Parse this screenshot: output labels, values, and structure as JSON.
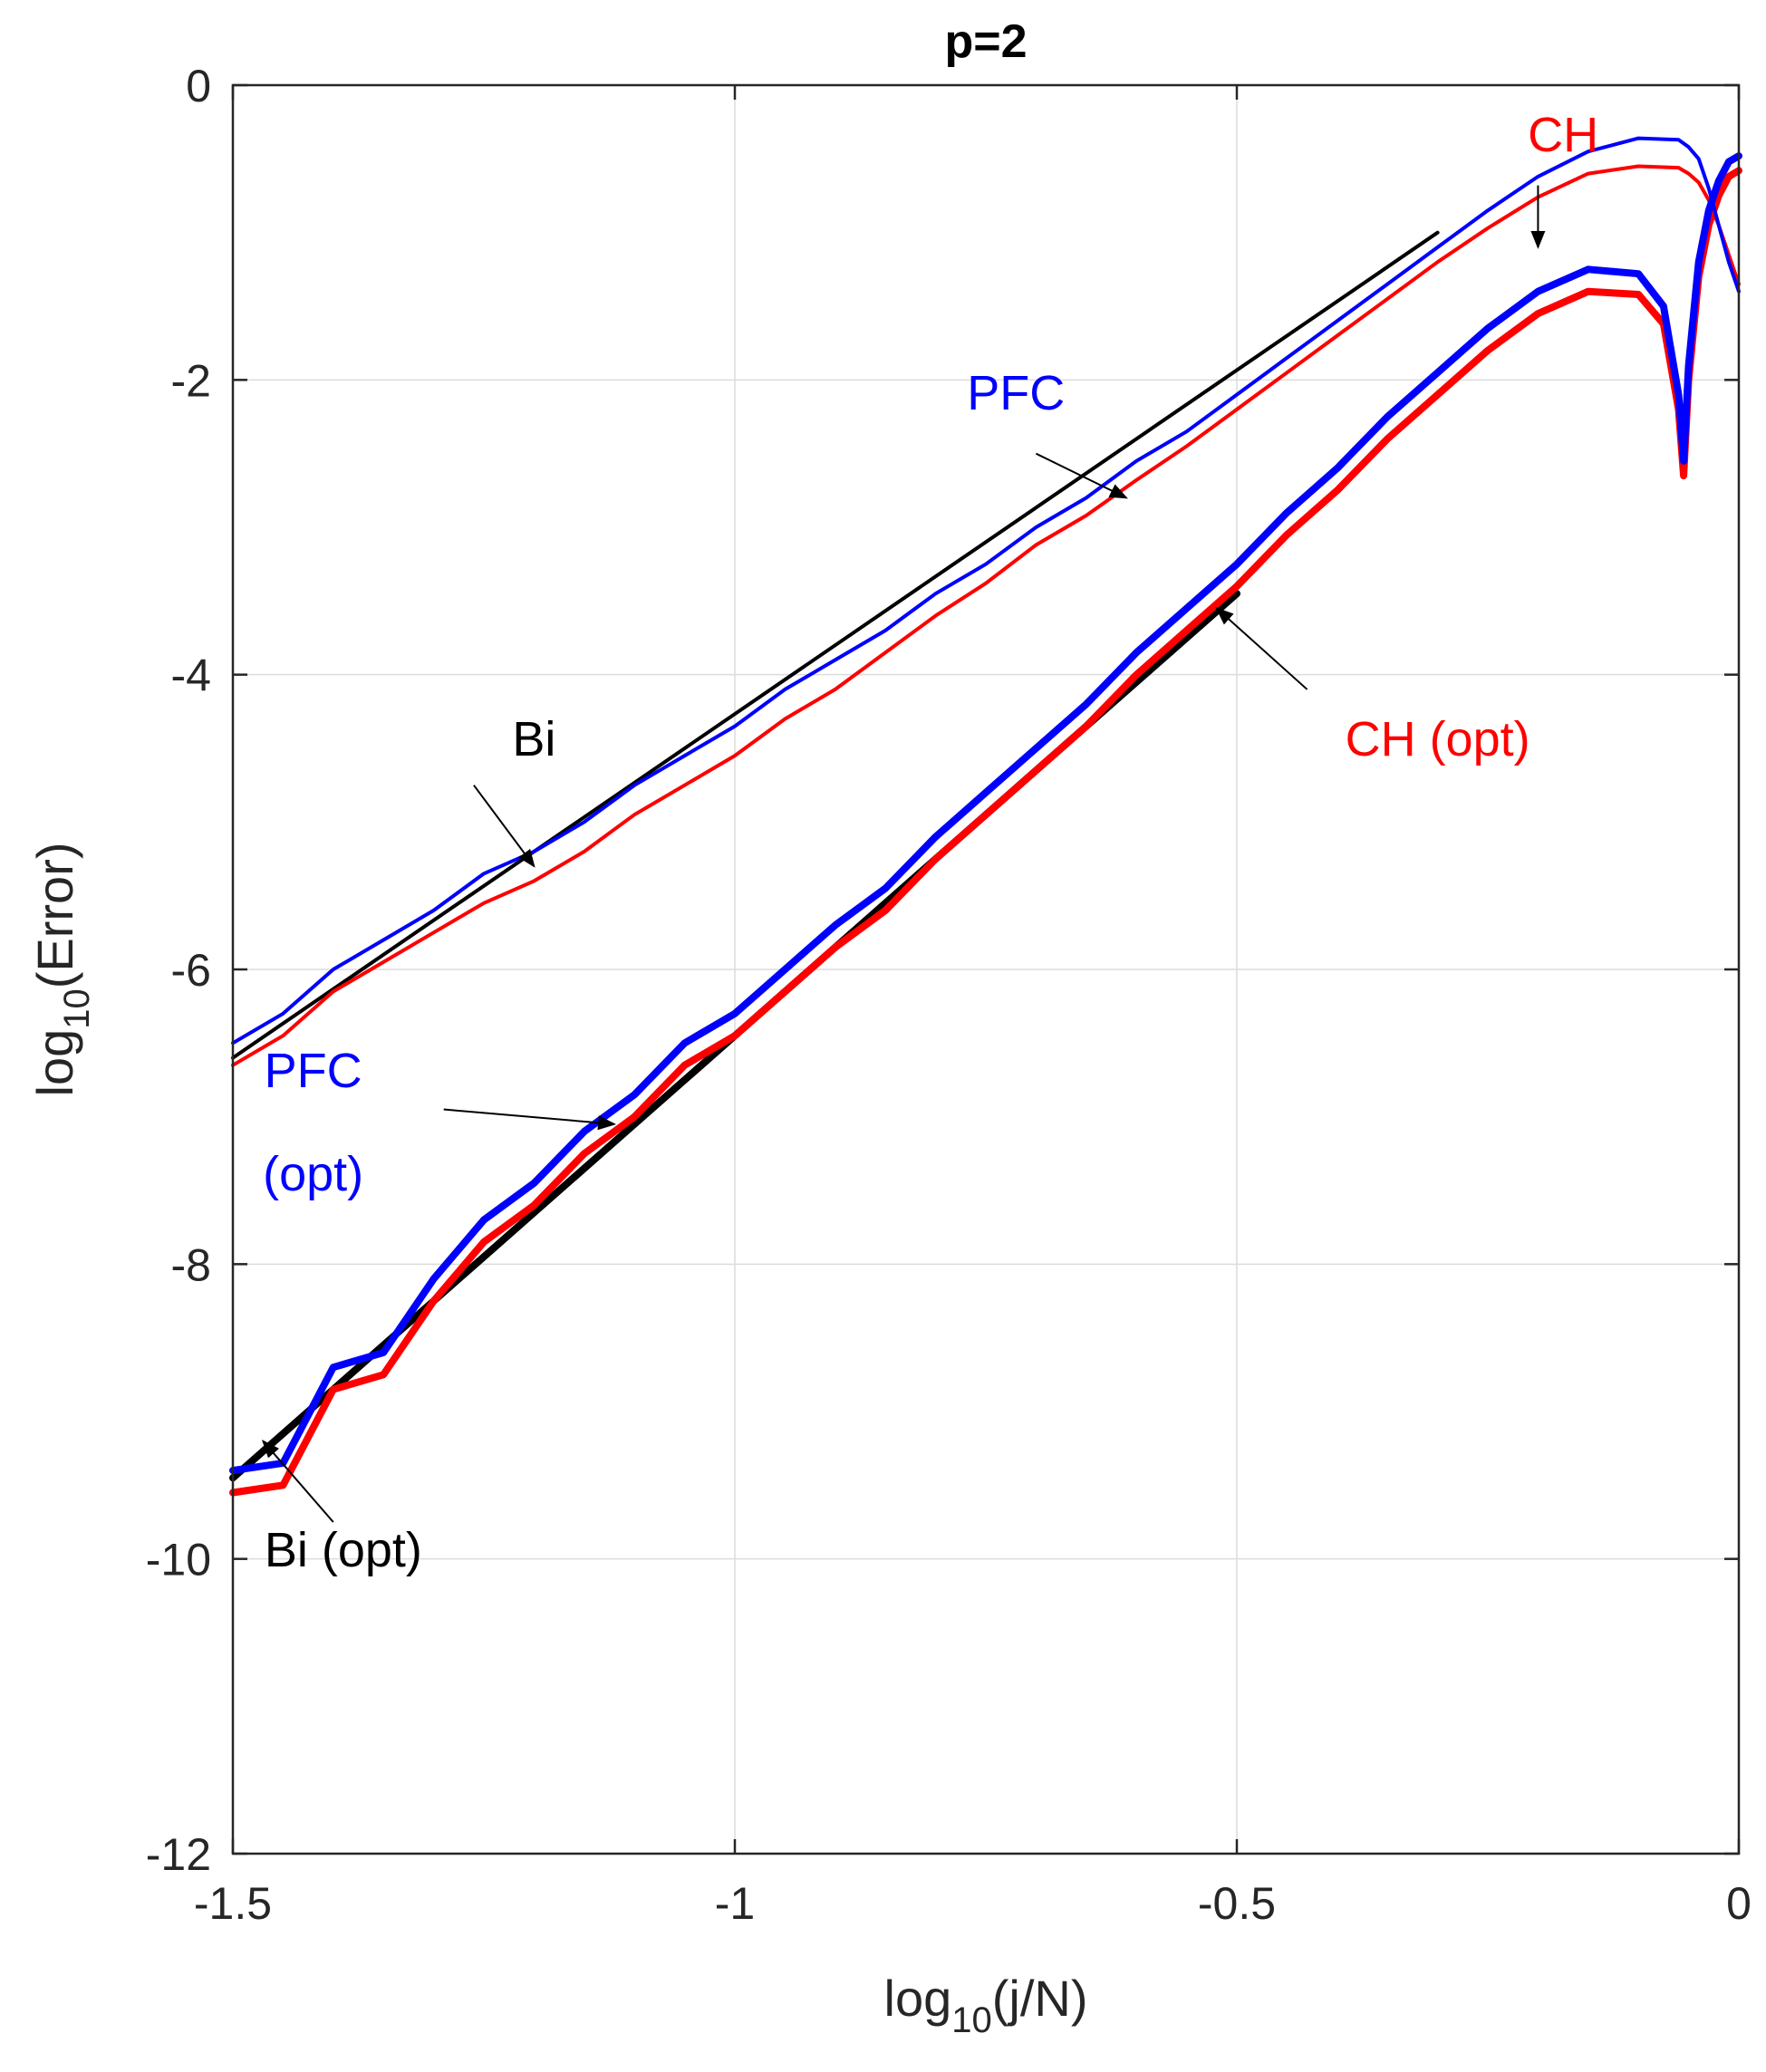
{
  "chart_data": {
    "type": "line",
    "title": "p=2",
    "xlabel": {
      "base": "log",
      "sub": "10",
      "rest": "(j/N)"
    },
    "ylabel": {
      "base": "log",
      "sub": "10",
      "rest": "(Error)"
    },
    "xlim": [
      -1.5,
      0
    ],
    "ylim": [
      -12,
      0
    ],
    "grid": true,
    "x_ticks": [
      -1.5,
      -1,
      -0.5,
      0
    ],
    "x_tick_labels": [
      "-1.5",
      "-1",
      "-0.5",
      "0"
    ],
    "y_ticks": [
      0,
      -2,
      -4,
      -6,
      -8,
      -10,
      -12
    ],
    "y_tick_labels": [
      "0",
      "-2",
      "-4",
      "-6",
      "-8",
      "-10",
      "-12"
    ],
    "series": [
      {
        "name": "Bi",
        "color": "#000000",
        "line": "thin",
        "x": [
          -1.5,
          -0.3
        ],
        "y": [
          -6.6,
          -1.0
        ]
      },
      {
        "name": "PFC",
        "color": "#0000ff",
        "line": "thin",
        "x": [
          -1.5,
          -1.45,
          -1.4,
          -1.35,
          -1.3,
          -1.25,
          -1.2,
          -1.15,
          -1.1,
          -1.05,
          -1.0,
          -0.95,
          -0.9,
          -0.85,
          -0.8,
          -0.75,
          -0.7,
          -0.65,
          -0.6,
          -0.55,
          -0.5,
          -0.45,
          -0.4,
          -0.35,
          -0.3,
          -0.25,
          -0.2,
          -0.15,
          -0.1,
          -0.06,
          -0.05,
          -0.04,
          -0.03,
          -0.02,
          -0.01,
          0.0
        ],
        "y": [
          -6.5,
          -6.3,
          -6.0,
          -5.8,
          -5.6,
          -5.35,
          -5.2,
          -5.0,
          -4.75,
          -4.55,
          -4.35,
          -4.1,
          -3.9,
          -3.7,
          -3.45,
          -3.25,
          -3.0,
          -2.8,
          -2.55,
          -2.35,
          -2.1,
          -1.85,
          -1.6,
          -1.35,
          -1.1,
          -0.85,
          -0.62,
          -0.45,
          -0.36,
          -0.37,
          -0.42,
          -0.5,
          -0.7,
          -0.95,
          -1.2,
          -1.4
        ]
      },
      {
        "name": "CH",
        "color": "#ff0000",
        "line": "thin",
        "x": [
          -1.5,
          -1.45,
          -1.4,
          -1.35,
          -1.3,
          -1.25,
          -1.2,
          -1.15,
          -1.1,
          -1.05,
          -1.0,
          -0.95,
          -0.9,
          -0.85,
          -0.8,
          -0.75,
          -0.7,
          -0.65,
          -0.6,
          -0.55,
          -0.5,
          -0.45,
          -0.4,
          -0.35,
          -0.3,
          -0.25,
          -0.2,
          -0.15,
          -0.1,
          -0.06,
          -0.05,
          -0.04,
          -0.03,
          -0.02,
          -0.01,
          0.0
        ],
        "y": [
          -6.65,
          -6.45,
          -6.15,
          -5.95,
          -5.75,
          -5.55,
          -5.4,
          -5.2,
          -4.95,
          -4.75,
          -4.55,
          -4.3,
          -4.1,
          -3.85,
          -3.6,
          -3.38,
          -3.12,
          -2.92,
          -2.68,
          -2.45,
          -2.2,
          -1.95,
          -1.7,
          -1.45,
          -1.2,
          -0.97,
          -0.76,
          -0.6,
          -0.55,
          -0.56,
          -0.6,
          -0.66,
          -0.78,
          -0.95,
          -1.15,
          -1.35
        ]
      },
      {
        "name": "Bi (opt)",
        "color": "#000000",
        "line": "thick",
        "x": [
          -1.5,
          -0.5
        ],
        "y": [
          -9.45,
          -3.45
        ]
      },
      {
        "name": "PFC (opt)",
        "color": "#0000ff",
        "line": "thick",
        "x": [
          -1.5,
          -1.45,
          -1.4,
          -1.35,
          -1.3,
          -1.25,
          -1.2,
          -1.15,
          -1.1,
          -1.05,
          -1.0,
          -0.95,
          -0.9,
          -0.85,
          -0.8,
          -0.75,
          -0.7,
          -0.65,
          -0.6,
          -0.55,
          -0.5,
          -0.45,
          -0.4,
          -0.35,
          -0.3,
          -0.25,
          -0.2,
          -0.15,
          -0.1,
          -0.075,
          -0.06,
          -0.055,
          -0.05,
          -0.04,
          -0.03,
          -0.02,
          -0.01,
          0.0
        ],
        "y": [
          -9.4,
          -9.35,
          -8.7,
          -8.6,
          -8.1,
          -7.7,
          -7.45,
          -7.1,
          -6.85,
          -6.5,
          -6.3,
          -6.0,
          -5.7,
          -5.45,
          -5.1,
          -4.8,
          -4.5,
          -4.2,
          -3.85,
          -3.55,
          -3.25,
          -2.9,
          -2.6,
          -2.25,
          -1.95,
          -1.65,
          -1.4,
          -1.25,
          -1.28,
          -1.5,
          -2.1,
          -2.55,
          -1.9,
          -1.2,
          -0.85,
          -0.65,
          -0.52,
          -0.48
        ]
      },
      {
        "name": "CH (opt)",
        "color": "#ff0000",
        "line": "thick",
        "x": [
          -1.5,
          -1.45,
          -1.4,
          -1.35,
          -1.3,
          -1.25,
          -1.2,
          -1.15,
          -1.1,
          -1.05,
          -1.0,
          -0.95,
          -0.9,
          -0.85,
          -0.8,
          -0.75,
          -0.7,
          -0.65,
          -0.6,
          -0.55,
          -0.5,
          -0.45,
          -0.4,
          -0.35,
          -0.3,
          -0.25,
          -0.2,
          -0.15,
          -0.1,
          -0.075,
          -0.06,
          -0.055,
          -0.05,
          -0.04,
          -0.03,
          -0.02,
          -0.01,
          0.0
        ],
        "y": [
          -9.55,
          -9.5,
          -8.85,
          -8.75,
          -8.25,
          -7.85,
          -7.6,
          -7.25,
          -7.0,
          -6.65,
          -6.45,
          -6.15,
          -5.85,
          -5.6,
          -5.25,
          -4.95,
          -4.65,
          -4.35,
          -4.0,
          -3.7,
          -3.4,
          -3.05,
          -2.75,
          -2.4,
          -2.1,
          -1.8,
          -1.55,
          -1.4,
          -1.42,
          -1.62,
          -2.2,
          -2.65,
          -2.0,
          -1.3,
          -0.95,
          -0.75,
          -0.62,
          -0.58
        ]
      }
    ],
    "annotations": [
      {
        "text": "CH",
        "color": "#ff0000",
        "text_pos": [
          -0.175,
          -0.45
        ],
        "arrow_from": [
          -0.2,
          -0.68
        ],
        "arrow_to": [
          -0.2,
          -1.1
        ]
      },
      {
        "text": "PFC",
        "color": "#0000ff",
        "text_pos": [
          -0.72,
          -2.2
        ],
        "arrow_from": [
          -0.7,
          -2.5
        ],
        "arrow_to": [
          -0.61,
          -2.8
        ]
      },
      {
        "text": "Bi",
        "color": "#000000",
        "text_pos": [
          -1.2,
          -4.55
        ],
        "arrow_from": [
          -1.26,
          -4.75
        ],
        "arrow_to": [
          -1.2,
          -5.3
        ]
      },
      {
        "text": "CH (opt)",
        "color": "#ff0000",
        "text_pos": [
          -0.3,
          -4.55
        ],
        "arrow_from": [
          -0.43,
          -4.1
        ],
        "arrow_to": [
          -0.52,
          -3.55
        ]
      },
      {
        "text": "PFC",
        "color": "#0000ff",
        "text_pos": [
          -1.42,
          -6.8
        ],
        "arrow_from": [
          -1.29,
          -6.95
        ],
        "arrow_to": [
          -1.12,
          -7.05
        ]
      },
      {
        "text": "(opt)",
        "color": "#0000ff",
        "text_pos": [
          -1.42,
          -7.5
        ],
        "arrow_from": null,
        "arrow_to": null
      },
      {
        "text": "Bi (opt)",
        "color": "#000000",
        "text_pos": [
          -1.39,
          -10.05
        ],
        "arrow_from": [
          -1.4,
          -9.75
        ],
        "arrow_to": [
          -1.47,
          -9.2
        ]
      }
    ]
  }
}
